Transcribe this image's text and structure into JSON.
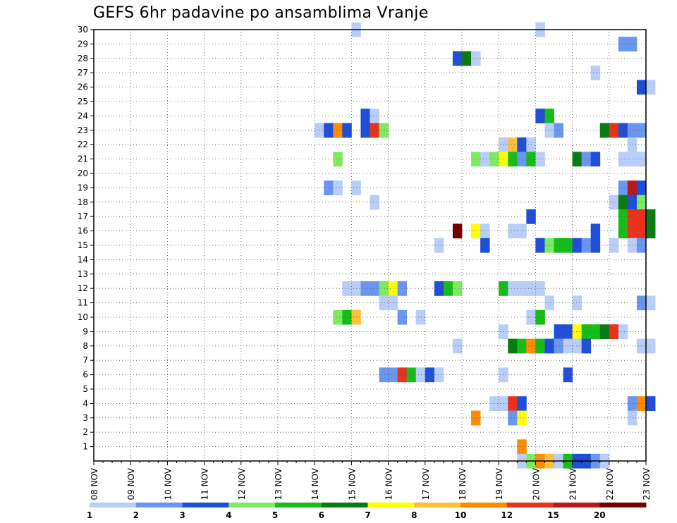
{
  "chart_data": {
    "type": "heatmap",
    "title": "GEFS 6hr padavine po ansamblima Vranje",
    "xlabel": "",
    "ylabel": "",
    "x_tick_labels": [
      "08 NOV",
      "09 NOV",
      "10 NOV",
      "11 NOV",
      "12 NOV",
      "13 NOV",
      "14 NOV",
      "15 NOV",
      "16 NOV",
      "17 NOV",
      "18 NOV",
      "19 NOV",
      "20 NOV",
      "21 NOV",
      "22 NOV",
      "23 NOV"
    ],
    "x_range_days": [
      8,
      23
    ],
    "x_step_hours": 6,
    "y_tick_labels": [
      "1",
      "2",
      "3",
      "4",
      "5",
      "6",
      "7",
      "8",
      "9",
      "10",
      "11",
      "12",
      "13",
      "14",
      "15",
      "16",
      "17",
      "18",
      "19",
      "20",
      "21",
      "22",
      "23",
      "24",
      "25",
      "26",
      "27",
      "28",
      "29",
      "30"
    ],
    "y_range": [
      0,
      30
    ],
    "grid": true,
    "legend": {
      "placement": "bottom",
      "ticks": [
        "1",
        "2",
        "3",
        "4",
        "5",
        "6",
        "7",
        "8",
        "10",
        "12",
        "15",
        "20"
      ],
      "colors": [
        "#b8cdf8",
        "#6a96f0",
        "#1f4fd8",
        "#7dea63",
        "#18bc18",
        "#0a7a12",
        "#ffff00",
        "#ffbf3d",
        "#ff8c00",
        "#e8321a",
        "#b81818",
        "#740000"
      ]
    },
    "cells": [
      [
        30,
        15.0,
        1
      ],
      [
        30,
        20.0,
        1
      ],
      [
        29,
        22.25,
        2
      ],
      [
        29,
        22.5,
        2
      ],
      [
        28,
        17.75,
        3
      ],
      [
        28,
        18.0,
        6
      ],
      [
        28,
        18.25,
        1
      ],
      [
        27,
        21.5,
        1
      ],
      [
        26,
        22.75,
        3
      ],
      [
        26,
        23.0,
        1
      ],
      [
        24,
        15.25,
        3
      ],
      [
        24,
        15.5,
        1
      ],
      [
        24,
        20.0,
        3
      ],
      [
        24,
        20.25,
        5
      ],
      [
        23,
        14.0,
        1
      ],
      [
        23,
        14.25,
        3
      ],
      [
        23,
        14.5,
        9
      ],
      [
        23,
        14.75,
        3
      ],
      [
        23,
        15.25,
        3
      ],
      [
        23,
        15.5,
        10
      ],
      [
        23,
        15.75,
        4
      ],
      [
        23,
        20.25,
        1
      ],
      [
        23,
        20.5,
        2
      ],
      [
        23,
        21.75,
        6
      ],
      [
        23,
        22.0,
        10
      ],
      [
        23,
        22.25,
        3
      ],
      [
        23,
        22.5,
        2
      ],
      [
        23,
        22.75,
        2
      ],
      [
        22,
        19.0,
        1
      ],
      [
        22,
        19.25,
        8
      ],
      [
        22,
        19.5,
        3
      ],
      [
        22,
        19.75,
        1
      ],
      [
        22,
        22.5,
        1
      ],
      [
        21,
        14.5,
        4
      ],
      [
        21,
        18.25,
        4
      ],
      [
        21,
        18.5,
        1
      ],
      [
        21,
        18.75,
        4
      ],
      [
        21,
        19.0,
        7
      ],
      [
        21,
        19.25,
        5
      ],
      [
        21,
        19.5,
        2
      ],
      [
        21,
        19.75,
        5
      ],
      [
        21,
        20.0,
        1
      ],
      [
        21,
        21.0,
        6
      ],
      [
        21,
        21.25,
        2
      ],
      [
        21,
        21.5,
        3
      ],
      [
        21,
        22.25,
        1
      ],
      [
        21,
        22.5,
        1
      ],
      [
        21,
        22.75,
        1
      ],
      [
        19,
        14.25,
        2
      ],
      [
        19,
        14.5,
        1
      ],
      [
        19,
        15.0,
        1
      ],
      [
        19,
        22.25,
        2
      ],
      [
        19,
        22.5,
        11
      ],
      [
        19,
        22.75,
        3
      ],
      [
        18,
        15.5,
        1
      ],
      [
        18,
        22.0,
        1
      ],
      [
        18,
        22.25,
        6
      ],
      [
        18,
        22.5,
        3
      ],
      [
        18,
        22.75,
        4
      ],
      [
        17,
        19.75,
        3
      ],
      [
        17,
        22.25,
        5
      ],
      [
        17,
        22.5,
        10
      ],
      [
        17,
        22.75,
        10
      ],
      [
        17,
        23.0,
        6
      ],
      [
        16,
        17.75,
        12
      ],
      [
        16,
        18.25,
        7
      ],
      [
        16,
        18.5,
        1
      ],
      [
        16,
        19.25,
        1
      ],
      [
        16,
        19.5,
        1
      ],
      [
        16,
        21.5,
        3
      ],
      [
        16,
        22.25,
        5
      ],
      [
        16,
        22.5,
        10
      ],
      [
        16,
        22.75,
        10
      ],
      [
        16,
        23.0,
        6
      ],
      [
        15,
        17.25,
        1
      ],
      [
        15,
        18.5,
        3
      ],
      [
        15,
        20.0,
        3
      ],
      [
        15,
        20.25,
        4
      ],
      [
        15,
        20.5,
        5
      ],
      [
        15,
        20.75,
        5
      ],
      [
        15,
        21.0,
        3
      ],
      [
        15,
        21.25,
        2
      ],
      [
        15,
        21.5,
        3
      ],
      [
        15,
        22.0,
        1
      ],
      [
        15,
        22.5,
        1
      ],
      [
        15,
        22.75,
        2
      ],
      [
        12,
        14.75,
        1
      ],
      [
        12,
        15.0,
        1
      ],
      [
        12,
        15.25,
        2
      ],
      [
        12,
        15.5,
        2
      ],
      [
        12,
        15.75,
        4
      ],
      [
        12,
        16.0,
        7
      ],
      [
        12,
        16.25,
        2
      ],
      [
        12,
        17.25,
        3
      ],
      [
        12,
        17.5,
        5
      ],
      [
        12,
        17.75,
        4
      ],
      [
        12,
        19.0,
        5
      ],
      [
        12,
        19.25,
        1
      ],
      [
        12,
        19.5,
        1
      ],
      [
        12,
        19.75,
        1
      ],
      [
        12,
        20.0,
        1
      ],
      [
        11,
        15.75,
        1
      ],
      [
        11,
        16.0,
        1
      ],
      [
        11,
        20.25,
        1
      ],
      [
        11,
        21.0,
        1
      ],
      [
        11,
        22.75,
        2
      ],
      [
        11,
        23.0,
        1
      ],
      [
        10,
        14.5,
        4
      ],
      [
        10,
        14.75,
        5
      ],
      [
        10,
        15.0,
        8
      ],
      [
        10,
        16.25,
        2
      ],
      [
        10,
        16.75,
        1
      ],
      [
        10,
        19.75,
        1
      ],
      [
        10,
        20.0,
        5
      ],
      [
        9,
        19.0,
        1
      ],
      [
        9,
        20.5,
        3
      ],
      [
        9,
        20.75,
        3
      ],
      [
        9,
        21.0,
        7
      ],
      [
        9,
        21.25,
        5
      ],
      [
        9,
        21.5,
        5
      ],
      [
        9,
        21.75,
        6
      ],
      [
        9,
        22.0,
        10
      ],
      [
        9,
        22.25,
        1
      ],
      [
        8,
        17.75,
        1
      ],
      [
        8,
        19.25,
        6
      ],
      [
        8,
        19.5,
        5
      ],
      [
        8,
        19.75,
        9
      ],
      [
        8,
        20.0,
        5
      ],
      [
        8,
        20.25,
        3
      ],
      [
        8,
        20.5,
        2
      ],
      [
        8,
        20.75,
        1
      ],
      [
        8,
        21.0,
        1
      ],
      [
        8,
        21.25,
        3
      ],
      [
        8,
        22.75,
        1
      ],
      [
        8,
        23.0,
        1
      ],
      [
        6,
        15.75,
        2
      ],
      [
        6,
        16.0,
        2
      ],
      [
        6,
        16.25,
        10
      ],
      [
        6,
        16.5,
        5
      ],
      [
        6,
        16.75,
        1
      ],
      [
        6,
        17.0,
        3
      ],
      [
        6,
        17.25,
        1
      ],
      [
        6,
        19.0,
        1
      ],
      [
        6,
        20.75,
        3
      ],
      [
        4,
        18.75,
        1
      ],
      [
        4,
        19.0,
        1
      ],
      [
        4,
        19.25,
        10
      ],
      [
        4,
        19.5,
        3
      ],
      [
        4,
        22.5,
        2
      ],
      [
        4,
        22.75,
        9
      ],
      [
        4,
        23.0,
        3
      ],
      [
        3,
        18.25,
        9
      ],
      [
        3,
        19.25,
        2
      ],
      [
        3,
        19.5,
        7
      ],
      [
        3,
        22.5,
        1
      ],
      [
        1,
        19.5,
        9
      ],
      [
        0,
        19.5,
        1
      ],
      [
        0,
        19.75,
        4
      ],
      [
        0,
        20.0,
        9
      ],
      [
        0,
        20.25,
        8
      ],
      [
        0,
        20.5,
        1
      ],
      [
        0,
        20.75,
        5
      ],
      [
        0,
        21.0,
        3
      ],
      [
        0,
        21.25,
        3
      ],
      [
        0,
        21.5,
        2
      ],
      [
        0,
        21.75,
        1
      ]
    ]
  }
}
